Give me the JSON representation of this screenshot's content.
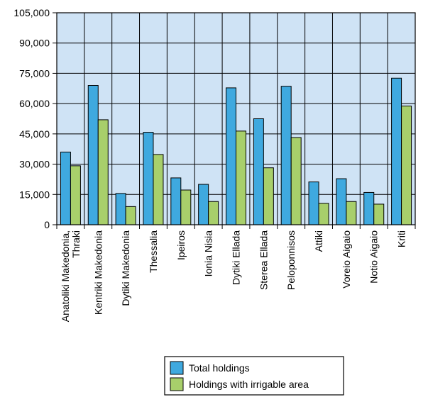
{
  "chart_data": {
    "type": "bar",
    "title": "",
    "xlabel": "",
    "ylabel": "",
    "ylim": [
      0,
      105000
    ],
    "yticks": [
      0,
      15000,
      30000,
      45000,
      60000,
      75000,
      90000,
      105000
    ],
    "ytick_labels": [
      "0",
      "15,000",
      "30,000",
      "45,000",
      "60,000",
      "75,000",
      "90,000",
      "105,000"
    ],
    "categories": [
      "Anatoliki Makedonia, Thraki",
      "Kentriki Makedonia",
      "Dytiki Makedonia",
      "Thessalia",
      "Ipeiros",
      "Ionia Nisia",
      "Dytiki Ellada",
      "Sterea Ellada",
      "Peloponnisos",
      "Attiki",
      "Voreio Aigaio",
      "Notio Aigaio",
      "Kriti"
    ],
    "category_lines": [
      [
        "Anatoliki Makedonia,",
        "Thraki"
      ],
      [
        "Kentriki Makedonia"
      ],
      [
        "Dytiki Makedonia"
      ],
      [
        "Thessalia"
      ],
      [
        "Ipeiros"
      ],
      [
        "Ionia Nisia"
      ],
      [
        "Dytiki Ellada"
      ],
      [
        "Sterea Ellada"
      ],
      [
        "Peloponnisos"
      ],
      [
        "Attiki"
      ],
      [
        "Voreio Aigaio"
      ],
      [
        "Notio Aigaio"
      ],
      [
        "Kriti"
      ]
    ],
    "series": [
      {
        "name": "Total holdings",
        "color": "#3fa9df",
        "values": [
          36000,
          69000,
          15500,
          45800,
          23200,
          20000,
          67800,
          52500,
          68600,
          21200,
          22800,
          16000,
          72600
        ]
      },
      {
        "name": "Holdings with irrigable area",
        "color": "#a8cf6b",
        "values": [
          29200,
          52000,
          9000,
          34800,
          17200,
          11500,
          46400,
          28200,
          43200,
          10600,
          11500,
          10200,
          58800
        ]
      }
    ],
    "grid": true,
    "plot_background": "#cfe3f5",
    "legend_position": "bottom-center"
  }
}
